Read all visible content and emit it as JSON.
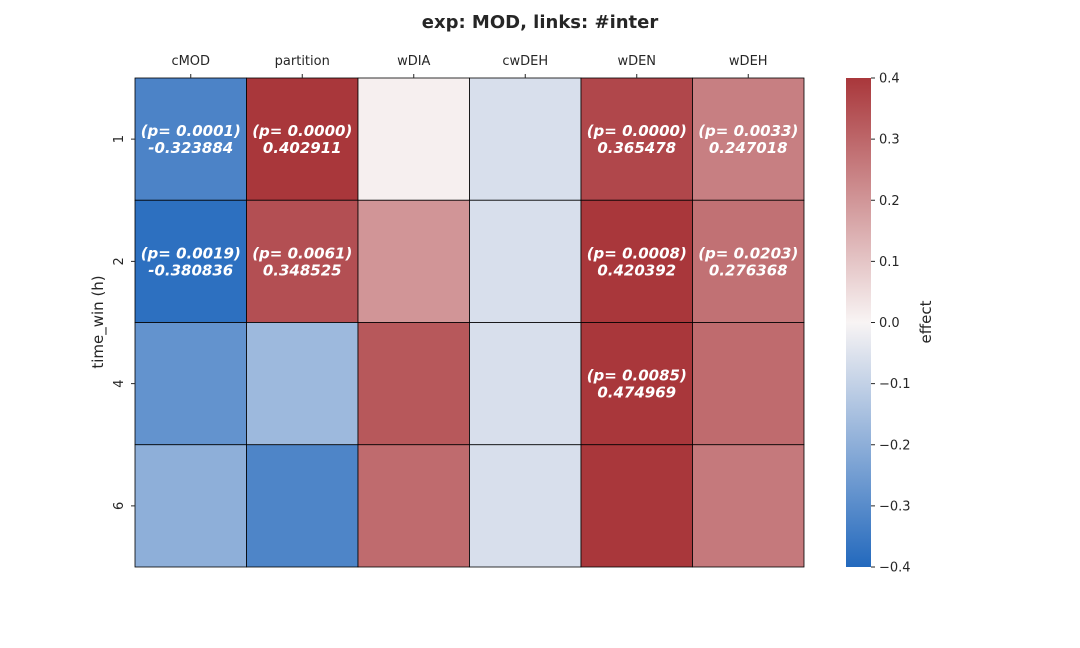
{
  "chart_data": {
    "type": "heatmap",
    "title": "exp: MOD, links: #inter",
    "xlabel": "",
    "ylabel": "time_win (h)",
    "x_ticks_position": "top",
    "x_categories": [
      "cMOD",
      "partition",
      "wDIA",
      "cwDEH",
      "wDEN",
      "wDEH"
    ],
    "y_categories": [
      "1",
      "2",
      "4",
      "6"
    ],
    "values": [
      [
        -0.323884,
        0.402911,
        0.01,
        -0.06,
        0.365478,
        0.247018
      ],
      [
        -0.380836,
        0.348525,
        0.2,
        -0.06,
        0.420392,
        0.276368
      ],
      [
        -0.28,
        -0.17,
        0.33,
        -0.06,
        0.474969,
        0.29
      ],
      [
        -0.2,
        -0.32,
        0.29,
        -0.06,
        0.4,
        0.26
      ]
    ],
    "annotations": [
      [
        "(p= 0.0001)\n-0.323884",
        "(p= 0.0000)\n0.402911",
        "",
        "",
        "(p= 0.0000)\n0.365478",
        "(p= 0.0033)\n0.247018"
      ],
      [
        "(p= 0.0019)\n-0.380836",
        "(p= 0.0061)\n0.348525",
        "",
        "",
        "(p= 0.0008)\n0.420392",
        "(p= 0.0203)\n0.276368"
      ],
      [
        "",
        "",
        "",
        "",
        "(p= 0.0085)\n0.474969",
        ""
      ],
      [
        "",
        "",
        "",
        "",
        "",
        ""
      ]
    ],
    "colorbar": {
      "label": "effect",
      "range": [
        -0.4,
        0.4
      ],
      "ticks": [
        "0.4",
        "0.3",
        "0.2",
        "0.1",
        "0.0",
        "−0.1",
        "−0.2",
        "−0.3",
        "−0.4"
      ],
      "colormap": "vlag",
      "low_color": "#2369bd",
      "mid_color": "#f8f4f4",
      "high_color": "#a9373b"
    },
    "grid": false
  }
}
